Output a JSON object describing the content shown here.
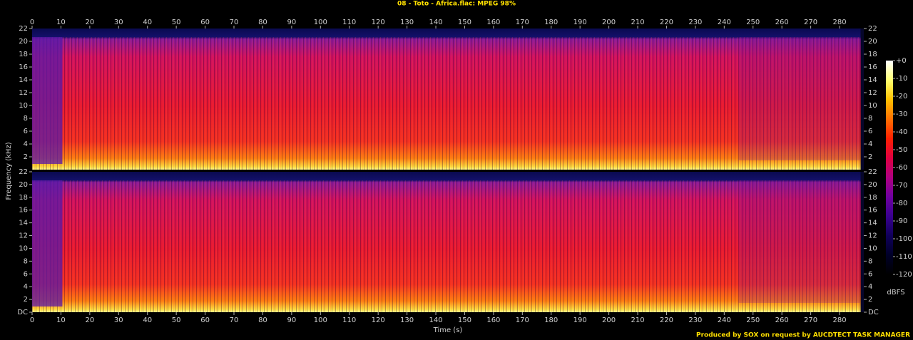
{
  "chart_data": {
    "type": "spectrogram",
    "title": "08 - Toto - Africa.flac: MPEG 98%",
    "xlabel": "Time (s)",
    "ylabel": "Frequency (kHz)",
    "xlim": [
      0,
      288.4
    ],
    "xticks": [
      0,
      10,
      20,
      30,
      40,
      50,
      60,
      70,
      80,
      90,
      100,
      110,
      120,
      130,
      140,
      150,
      160,
      170,
      180,
      190,
      200,
      210,
      220,
      230,
      240,
      250,
      260,
      270,
      280
    ],
    "ylim": [
      0,
      22
    ],
    "channels": [
      {
        "yticks": [
          2,
          4,
          6,
          8,
          10,
          12,
          14,
          16,
          18,
          20,
          22
        ]
      },
      {
        "yticks": [
          {
            "value": 0,
            "label": "DC"
          },
          2,
          4,
          6,
          8,
          10,
          12,
          14,
          16,
          18,
          20,
          22
        ]
      }
    ],
    "colorbar": {
      "label": "dBFS",
      "lim": [
        -120,
        0
      ],
      "ticks": [
        {
          "value": 0,
          "label": "+0"
        },
        -10,
        -20,
        -30,
        -40,
        -50,
        -60,
        -70,
        -80,
        -90,
        -100,
        -110,
        -120
      ],
      "colors": [
        "#ffffff",
        "#ffff70",
        "#ffc000",
        "#ff7000",
        "#ff2000",
        "#e00040",
        "#b00080",
        "#7000a0",
        "#3a0090",
        "#10005a",
        "#000028",
        "#000000"
      ]
    },
    "footer": "Produced by SOX on request by AUCDTECT TASK MANAGER"
  }
}
